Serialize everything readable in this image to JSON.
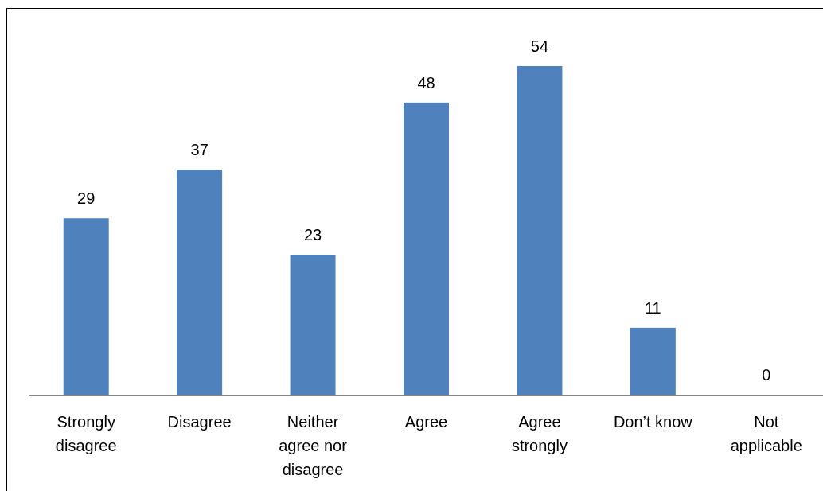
{
  "chart_data": {
    "type": "bar",
    "categories": [
      "Strongly disagree",
      "Disagree",
      "Neither agree nor disagree",
      "Agree",
      "Agree strongly",
      "Don’t know",
      "Not applicable"
    ],
    "values": [
      29,
      37,
      23,
      48,
      54,
      11,
      0
    ],
    "color": "#4f81bd",
    "data_labels": true
  }
}
